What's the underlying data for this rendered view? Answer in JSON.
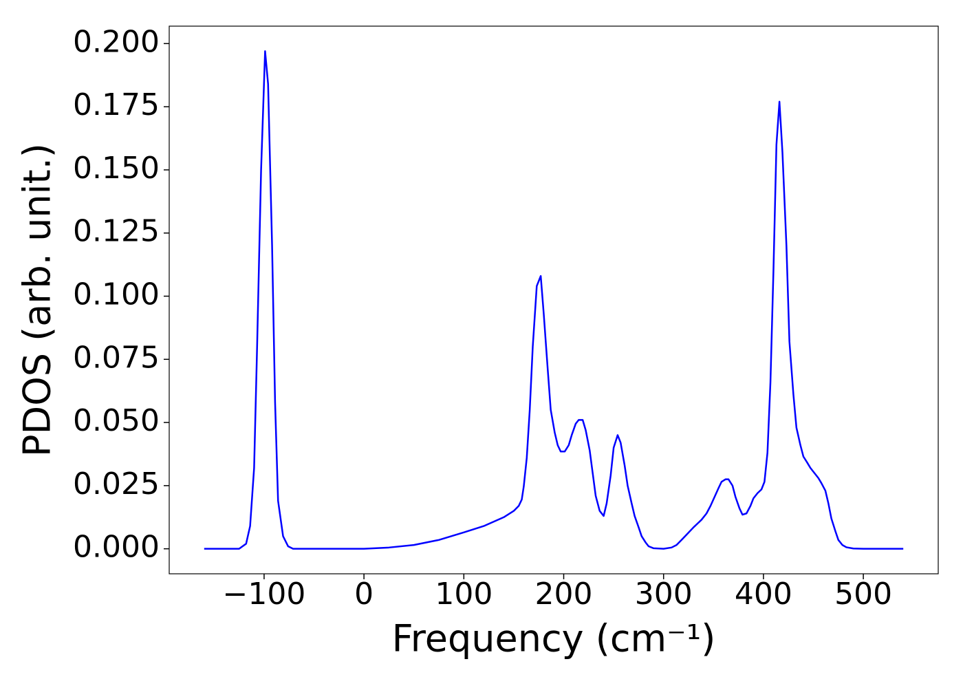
{
  "chart_data": {
    "type": "line",
    "xlabel": "Frequency (cm⁻¹)",
    "ylabel": "PDOS (arb. unit.)",
    "series": [
      {
        "color": "#0000ff",
        "x": [
          -160,
          -140,
          -125,
          -118,
          -114,
          -110,
          -107,
          -103,
          -99,
          -96,
          -92,
          -89,
          -86,
          -81,
          -76,
          -71,
          -50,
          0,
          25,
          50,
          75,
          100,
          120,
          140,
          150,
          155,
          158,
          160,
          163,
          166,
          169,
          173,
          177,
          180,
          184,
          187,
          191,
          194,
          197,
          201,
          205,
          208,
          212,
          215,
          219,
          222,
          226,
          229,
          232,
          236,
          240,
          243,
          247,
          250,
          254,
          257,
          261,
          264,
          268,
          271,
          275,
          278,
          282,
          285,
          290,
          300,
          308,
          313,
          318,
          324,
          330,
          338,
          343,
          347,
          351,
          355,
          358,
          362,
          365,
          369,
          372,
          376,
          379,
          383,
          387,
          390,
          394,
          398,
          401,
          404,
          407,
          410,
          413,
          416,
          419,
          423,
          426,
          430,
          433,
          437,
          440,
          444,
          447,
          451,
          455,
          458,
          462,
          465,
          468,
          472,
          475,
          479,
          483,
          490,
          500,
          540
        ],
        "values": [
          0,
          0,
          0,
          0.002,
          0.009,
          0.032,
          0.08,
          0.15,
          0.197,
          0.184,
          0.12,
          0.058,
          0.019,
          0.005,
          0.001,
          0,
          0,
          0,
          0.0005,
          0.0015,
          0.0035,
          0.0065,
          0.009,
          0.0125,
          0.015,
          0.017,
          0.0195,
          0.0247,
          0.036,
          0.055,
          0.08,
          0.104,
          0.108,
          0.093,
          0.071,
          0.055,
          0.046,
          0.041,
          0.0385,
          0.0385,
          0.041,
          0.045,
          0.0495,
          0.051,
          0.051,
          0.047,
          0.039,
          0.03,
          0.021,
          0.015,
          0.013,
          0.018,
          0.029,
          0.04,
          0.045,
          0.042,
          0.033,
          0.025,
          0.018,
          0.013,
          0.0085,
          0.005,
          0.0025,
          0.001,
          0.0002,
          0,
          0.0005,
          0.0015,
          0.0035,
          0.006,
          0.0085,
          0.0115,
          0.014,
          0.017,
          0.0205,
          0.024,
          0.0265,
          0.0275,
          0.0275,
          0.025,
          0.0205,
          0.016,
          0.0135,
          0.014,
          0.017,
          0.02,
          0.022,
          0.0235,
          0.0265,
          0.038,
          0.066,
          0.11,
          0.16,
          0.177,
          0.157,
          0.12,
          0.082,
          0.061,
          0.048,
          0.041,
          0.0365,
          0.034,
          0.032,
          0.03,
          0.028,
          0.026,
          0.023,
          0.018,
          0.012,
          0.007,
          0.0035,
          0.0015,
          0.0006,
          0.0001,
          0,
          0
        ]
      }
    ],
    "xlim": [
      -195,
      575
    ],
    "ylim": [
      -0.0099,
      0.2069
    ],
    "xticks": [
      {
        "value": -100,
        "label": "−100"
      },
      0,
      100,
      200,
      300,
      400,
      500
    ],
    "yticks": [
      {
        "value": 0,
        "label": "0.000"
      },
      {
        "value": 0.025,
        "label": "0.025"
      },
      {
        "value": 0.05,
        "label": "0.050"
      },
      {
        "value": 0.075,
        "label": "0.075"
      },
      {
        "value": 0.1,
        "label": "0.100"
      },
      {
        "value": 0.125,
        "label": "0.125"
      },
      {
        "value": 0.15,
        "label": "0.150"
      },
      {
        "value": 0.175,
        "label": "0.175"
      },
      {
        "value": 0.2,
        "label": "0.200"
      }
    ],
    "grid": false
  }
}
